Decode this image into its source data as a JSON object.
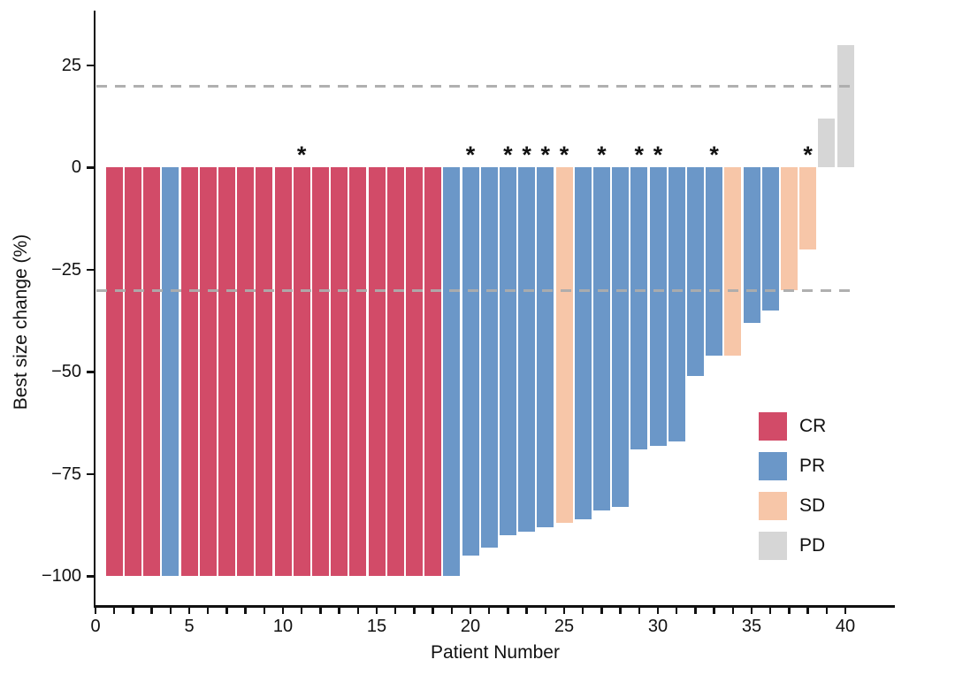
{
  "chart_data": {
    "type": "bar",
    "subtype": "waterfall",
    "title": "",
    "xlabel": "Patient Number",
    "ylabel": "Best size change (%)",
    "x_range": [
      0,
      41
    ],
    "x_tick_labels": [
      0,
      5,
      10,
      15,
      20,
      25,
      30,
      35,
      40
    ],
    "x_minor_tick_step": 1,
    "ylim": [
      -107,
      38
    ],
    "y_tick_labels": [
      25,
      0,
      -25,
      -50,
      -75,
      -100
    ],
    "grid": false,
    "reference_lines_y": [
      20,
      -30
    ],
    "reference_line_style": "dashed",
    "annotation_symbol": "*",
    "legend_position": "inside-bottom-right",
    "legend": [
      {
        "label": "CR",
        "color": "#d24b68"
      },
      {
        "label": "PR",
        "color": "#6b97c8"
      },
      {
        "label": "SD",
        "color": "#f7c6a8"
      },
      {
        "label": "PD",
        "color": "#d6d6d6"
      }
    ],
    "colors": {
      "CR": "#d24b68",
      "PR": "#6b97c8",
      "SD": "#f7c6a8",
      "PD": "#d6d6d6",
      "reference_line": "#acacac",
      "axis": "#111111"
    },
    "points": [
      {
        "patient": 1,
        "value": -100,
        "response": "CR",
        "star": false
      },
      {
        "patient": 2,
        "value": -100,
        "response": "CR",
        "star": false
      },
      {
        "patient": 3,
        "value": -100,
        "response": "CR",
        "star": false
      },
      {
        "patient": 4,
        "value": -100,
        "response": "PR",
        "star": false
      },
      {
        "patient": 5,
        "value": -100,
        "response": "CR",
        "star": false
      },
      {
        "patient": 6,
        "value": -100,
        "response": "CR",
        "star": false
      },
      {
        "patient": 7,
        "value": -100,
        "response": "CR",
        "star": false
      },
      {
        "patient": 8,
        "value": -100,
        "response": "CR",
        "star": false
      },
      {
        "patient": 9,
        "value": -100,
        "response": "CR",
        "star": false
      },
      {
        "patient": 10,
        "value": -100,
        "response": "CR",
        "star": false
      },
      {
        "patient": 11,
        "value": -100,
        "response": "CR",
        "star": true
      },
      {
        "patient": 12,
        "value": -100,
        "response": "CR",
        "star": false
      },
      {
        "patient": 13,
        "value": -100,
        "response": "CR",
        "star": false
      },
      {
        "patient": 14,
        "value": -100,
        "response": "CR",
        "star": false
      },
      {
        "patient": 15,
        "value": -100,
        "response": "CR",
        "star": false
      },
      {
        "patient": 16,
        "value": -100,
        "response": "CR",
        "star": false
      },
      {
        "patient": 17,
        "value": -100,
        "response": "CR",
        "star": false
      },
      {
        "patient": 18,
        "value": -100,
        "response": "CR",
        "star": false
      },
      {
        "patient": 19,
        "value": -100,
        "response": "PR",
        "star": false
      },
      {
        "patient": 20,
        "value": -95,
        "response": "PR",
        "star": true
      },
      {
        "patient": 21,
        "value": -93,
        "response": "PR",
        "star": false
      },
      {
        "patient": 22,
        "value": -90,
        "response": "PR",
        "star": true
      },
      {
        "patient": 23,
        "value": -89,
        "response": "PR",
        "star": true
      },
      {
        "patient": 24,
        "value": -88,
        "response": "PR",
        "star": true
      },
      {
        "patient": 25,
        "value": -87,
        "response": "SD",
        "star": true
      },
      {
        "patient": 26,
        "value": -86,
        "response": "PR",
        "star": false
      },
      {
        "patient": 27,
        "value": -84,
        "response": "PR",
        "star": true
      },
      {
        "patient": 28,
        "value": -83,
        "response": "PR",
        "star": false
      },
      {
        "patient": 29,
        "value": -69,
        "response": "PR",
        "star": true
      },
      {
        "patient": 30,
        "value": -68,
        "response": "PR",
        "star": true
      },
      {
        "patient": 31,
        "value": -67,
        "response": "PR",
        "star": false
      },
      {
        "patient": 32,
        "value": -51,
        "response": "PR",
        "star": false
      },
      {
        "patient": 33,
        "value": -46,
        "response": "PR",
        "star": true
      },
      {
        "patient": 34,
        "value": -46,
        "response": "SD",
        "star": false
      },
      {
        "patient": 35,
        "value": -38,
        "response": "PR",
        "star": false
      },
      {
        "patient": 36,
        "value": -35,
        "response": "PR",
        "star": false
      },
      {
        "patient": 37,
        "value": -30,
        "response": "SD",
        "star": false
      },
      {
        "patient": 38,
        "value": -20,
        "response": "SD",
        "star": true
      },
      {
        "patient": 39,
        "value": 12,
        "response": "PD",
        "star": false
      },
      {
        "patient": 40,
        "value": 30,
        "response": "PD",
        "star": false
      }
    ]
  }
}
